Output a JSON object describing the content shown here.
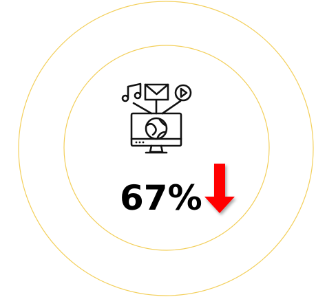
{
  "stat": {
    "label": "67%"
  }
}
